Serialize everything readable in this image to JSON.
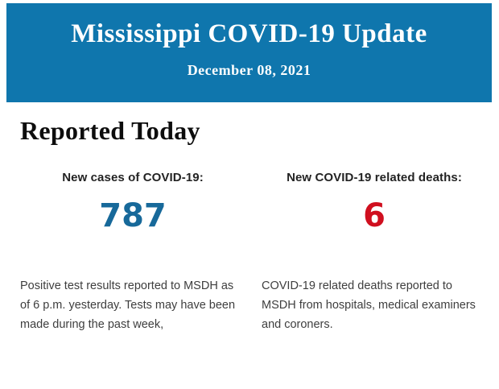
{
  "header": {
    "title": "Mississippi COVID-19 Update",
    "date": "December 08, 2021",
    "background_color": "#0f76ad",
    "text_color": "#ffffff"
  },
  "main": {
    "heading": "Reported Today",
    "stats": [
      {
        "label": "New cases of COVID-19:",
        "value": "787",
        "value_color": "#17699a",
        "description": "Positive test results reported to MSDH as of 6 p.m. yesterday. Tests may have been made during the past week,"
      },
      {
        "label": "New COVID-19 related deaths:",
        "value": "6",
        "value_color": "#d00f1f",
        "description": "COVID-19 related deaths reported to MSDH from hospitals, medical examiners and coroners."
      }
    ]
  }
}
